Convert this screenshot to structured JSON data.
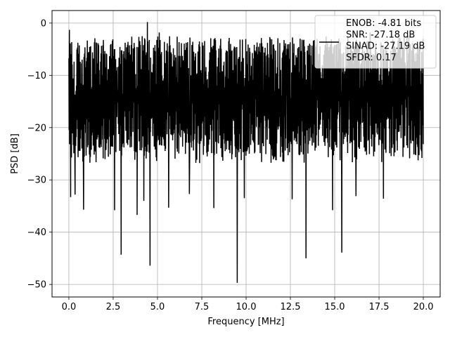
{
  "chart_data": {
    "type": "line",
    "xlabel": "Frequency [MHz]",
    "ylabel": "PSD [dB]",
    "xlim": [
      -0.95,
      20.95
    ],
    "ylim": [
      -52.4,
      2.4
    ],
    "xticks": [
      0.0,
      2.5,
      5.0,
      7.5,
      10.0,
      12.5,
      15.0,
      17.5,
      20.0
    ],
    "xtick_labels": [
      "0.0",
      "2.5",
      "5.0",
      "7.5",
      "10.0",
      "12.5",
      "15.0",
      "17.5",
      "20.0"
    ],
    "yticks": [
      0,
      -10,
      -20,
      -30,
      -40,
      -50
    ],
    "ytick_labels": [
      "0",
      "−10",
      "−20",
      "−30",
      "−40",
      "−50"
    ],
    "grid": true,
    "legend_position": "top-right",
    "series": [
      {
        "name": "ENOB: -4.81 bits\nSNR: -27.18 dB\nSINAD: -27.19 dB\nSFDR: 0.17",
        "color": "#000000",
        "x_range": [
          0.0,
          20.0
        ],
        "typical_upper": -4.0,
        "typical_lower": -25.0,
        "peaks": [
          {
            "x": 0.03,
            "y": -1.3
          },
          {
            "x": 0.1,
            "y": -2.5
          },
          {
            "x": 4.43,
            "y": 0.2
          },
          {
            "x": 5.1,
            "y": -1.8
          },
          {
            "x": 17.0,
            "y": -1.8
          }
        ],
        "dips": [
          {
            "x": 0.1,
            "y": -33.3
          },
          {
            "x": 0.35,
            "y": -32.8
          },
          {
            "x": 0.83,
            "y": -35.7
          },
          {
            "x": 2.58,
            "y": -35.8
          },
          {
            "x": 2.95,
            "y": -44.3
          },
          {
            "x": 3.85,
            "y": -36.7
          },
          {
            "x": 4.23,
            "y": -34.0
          },
          {
            "x": 4.58,
            "y": -46.4
          },
          {
            "x": 5.63,
            "y": -35.3
          },
          {
            "x": 6.8,
            "y": -32.7
          },
          {
            "x": 8.18,
            "y": -35.4
          },
          {
            "x": 9.5,
            "y": -49.7
          },
          {
            "x": 9.9,
            "y": -33.5
          },
          {
            "x": 12.6,
            "y": -33.7
          },
          {
            "x": 13.38,
            "y": -45.0
          },
          {
            "x": 14.88,
            "y": -35.8
          },
          {
            "x": 15.4,
            "y": -43.9
          },
          {
            "x": 16.2,
            "y": -33.1
          },
          {
            "x": 17.75,
            "y": -33.6
          }
        ]
      }
    ]
  }
}
